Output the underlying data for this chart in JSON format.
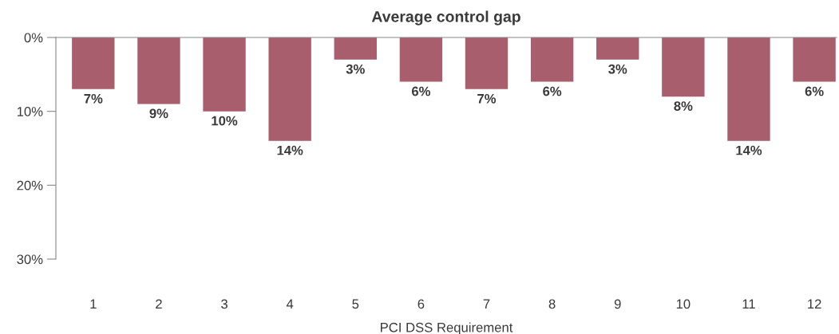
{
  "chart_data": {
    "type": "bar",
    "title": "Average control gap",
    "xlabel": "PCI DSS Requirement",
    "categories": [
      "1",
      "2",
      "3",
      "4",
      "5",
      "6",
      "7",
      "8",
      "9",
      "10",
      "11",
      "12"
    ],
    "values": [
      7,
      9,
      10,
      14,
      3,
      6,
      7,
      6,
      3,
      8,
      14,
      6
    ],
    "value_labels": [
      "7%",
      "9%",
      "10%",
      "14%",
      "3%",
      "6%",
      "7%",
      "6%",
      "3%",
      "8%",
      "14%",
      "6%"
    ],
    "color": "#a85e6c",
    "ylim": [
      30,
      0
    ],
    "yticks": [
      {
        "value": 0,
        "label": "0%"
      },
      {
        "value": 10,
        "label": "10%"
      },
      {
        "value": 20,
        "label": "20%"
      },
      {
        "value": 30,
        "label": "30%"
      }
    ],
    "grid": false,
    "legend": false
  }
}
